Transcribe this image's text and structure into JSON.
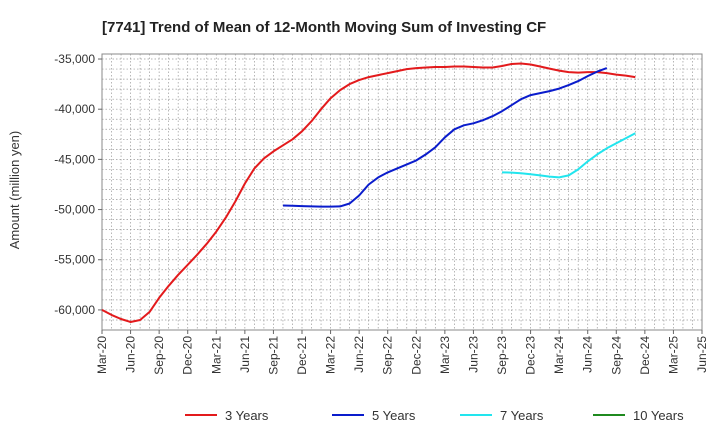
{
  "chart_data": {
    "type": "line",
    "title": "[7741]  Trend of Mean of 12-Month Moving Sum of Investing CF",
    "xlabel": "",
    "ylabel": "Amount (million yen)",
    "ylim": [
      -62000,
      -34500
    ],
    "y_ticks": [
      -60000,
      -55000,
      -50000,
      -45000,
      -40000,
      -35000
    ],
    "y_tick_labels": [
      "-60,000",
      "-55,000",
      "-50,000",
      "-45,000",
      "-40,000",
      "-35,000"
    ],
    "x_tick_labels": [
      "Mar-20",
      "Jun-20",
      "Sep-20",
      "Dec-20",
      "Mar-21",
      "Jun-21",
      "Sep-21",
      "Dec-21",
      "Mar-22",
      "Jun-22",
      "Sep-22",
      "Dec-22",
      "Mar-23",
      "Jun-23",
      "Sep-23",
      "Dec-23",
      "Mar-24",
      "Jun-24",
      "Sep-24",
      "Dec-24",
      "Mar-25",
      "Jun-25"
    ],
    "grid": true,
    "legend": "bottom",
    "series": [
      {
        "name": "3 Years",
        "color": "#e31a1c",
        "start_index": 0,
        "values": [
          -60000,
          -60500,
          -60900,
          -61200,
          -61000,
          -60200,
          -58800,
          -57600,
          -56500,
          -55500,
          -54500,
          -53400,
          -52200,
          -50800,
          -49200,
          -47400,
          -45900,
          -44900,
          -44200,
          -43600,
          -43000,
          -42200,
          -41200,
          -40000,
          -38900,
          -38100,
          -37500,
          -37100,
          -36800,
          -36600,
          -36400,
          -36200,
          -36000,
          -35900,
          -35850,
          -35800,
          -35800,
          -35750,
          -35750,
          -35800,
          -35850,
          -35850,
          -35700,
          -35500,
          -35450,
          -35550,
          -35750,
          -35950,
          -36150,
          -36300,
          -36350,
          -36300,
          -36300,
          -36400,
          -36550,
          -36650,
          -36800
        ]
      },
      {
        "name": "5 Years",
        "color": "#0a1ccc",
        "start_index": 19,
        "values": [
          -49600,
          -49620,
          -49650,
          -49680,
          -49700,
          -49700,
          -49680,
          -49400,
          -48600,
          -47500,
          -46800,
          -46300,
          -45900,
          -45500,
          -45100,
          -44500,
          -43800,
          -42800,
          -42000,
          -41600,
          -41400,
          -41100,
          -40700,
          -40200,
          -39600,
          -39000,
          -38600,
          -38400,
          -38200,
          -37950,
          -37600,
          -37200,
          -36700,
          -36250,
          -35900
        ]
      },
      {
        "name": "7 Years",
        "color": "#22e5ee",
        "start_index": 42,
        "values": [
          -46300,
          -46320,
          -46380,
          -46480,
          -46600,
          -46720,
          -46800,
          -46600,
          -46000,
          -45200,
          -44500,
          -43900,
          -43400,
          -42900,
          -42400
        ]
      },
      {
        "name": "10 Years",
        "color": "#1f8a1f",
        "start_index": 0,
        "values": []
      }
    ]
  }
}
